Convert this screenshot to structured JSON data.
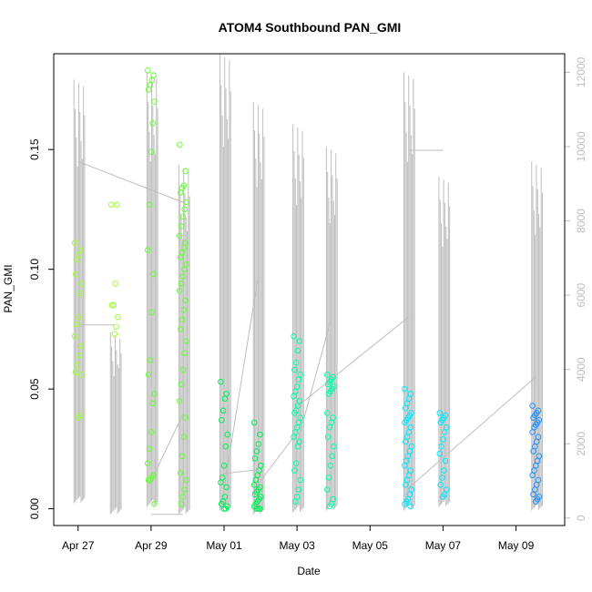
{
  "chart_data": {
    "type": "scatter",
    "title": "ATOM4 Southbound PAN_GMI",
    "xlabel": "Date",
    "ylabel": "PAN_GMI",
    "x_range": [
      "2016-04-26T08:00",
      "2016-05-10T08:00"
    ],
    "ylim": [
      -0.007,
      0.19
    ],
    "y2lim": [
      -200,
      12500
    ],
    "x_ticks": [
      {
        "date": "2016-04-27",
        "label": "Apr 27"
      },
      {
        "date": "2016-04-29",
        "label": "Apr 29"
      },
      {
        "date": "2016-05-01",
        "label": "May 01"
      },
      {
        "date": "2016-05-03",
        "label": "May 03"
      },
      {
        "date": "2016-05-05",
        "label": "May 05"
      },
      {
        "date": "2016-05-07",
        "label": "May 07"
      },
      {
        "date": "2016-05-09",
        "label": "May 09"
      }
    ],
    "y_ticks": [
      {
        "value": 0.0,
        "label": "0.00"
      },
      {
        "value": 0.05,
        "label": "0.05"
      },
      {
        "value": 0.1,
        "label": "0.10"
      },
      {
        "value": 0.15,
        "label": "0.15"
      }
    ],
    "y2_ticks": [
      {
        "value": 0,
        "label": "0"
      },
      {
        "value": 2000,
        "label": "2000"
      },
      {
        "value": 4000,
        "label": "4000"
      },
      {
        "value": 6000,
        "label": "6000"
      },
      {
        "value": 8000,
        "label": "8000"
      },
      {
        "value": 10000,
        "label": "10000"
      },
      {
        "value": 12000,
        "label": "12000"
      }
    ],
    "colors": {
      "altitude_line": "#bdbdbd",
      "point_palette": [
        "#9dff33",
        "#33ff33",
        "#00ff66",
        "#00ffcc",
        "#00e6ff",
        "#1e90ff"
      ]
    },
    "series": [
      {
        "type": "points",
        "color": "#9dff33",
        "points": [
          {
            "x": "2016-04-27T00:00",
            "y": [
              0.111,
              0.108,
              0.106,
              0.104,
              0.098,
              0.094,
              0.09,
              0.08,
              0.077,
              0.072,
              0.068,
              0.064,
              0.06,
              0.057,
              0.056,
              0.039,
              0.038
            ]
          },
          {
            "x": "2016-04-28T00:00",
            "y": [
              0.127,
              0.127,
              0.094,
              0.085,
              0.085,
              0.08,
              0.076,
              0.073
            ]
          }
        ]
      },
      {
        "type": "points",
        "color": "#66ff33",
        "points": [
          {
            "x": "2016-04-29T00:00",
            "y": [
              0.183,
              0.181,
              0.179,
              0.177,
              0.175,
              0.17,
              0.161,
              0.149,
              0.127,
              0.108,
              0.098,
              0.082,
              0.062,
              0.056,
              0.048,
              0.044,
              0.032,
              0.025,
              0.019,
              0.014,
              0.013,
              0.012,
              0.012,
              0.002
            ]
          },
          {
            "x": "2016-04-29T21:00",
            "y": [
              0.152,
              0.141,
              0.135,
              0.134,
              0.132,
              0.128,
              0.125,
              0.122,
              0.118,
              0.114,
              0.111,
              0.109,
              0.107,
              0.105,
              0.102,
              0.1,
              0.097,
              0.094,
              0.091,
              0.087,
              0.083,
              0.079,
              0.075,
              0.07,
              0.065,
              0.058,
              0.052,
              0.045,
              0.038,
              0.03,
              0.022,
              0.015,
              0.012,
              0.008,
              0.005,
              0.002
            ]
          }
        ]
      },
      {
        "type": "points",
        "color": "#00ee55",
        "points": [
          {
            "x": "2016-05-01T00:00",
            "y": [
              0.053,
              0.048,
              0.046,
              0.041,
              0.037,
              0.031,
              0.026,
              0.018,
              0.013,
              0.011,
              0.009,
              0.005,
              0.003,
              0.002,
              0.001,
              0.0,
              0.0
            ]
          },
          {
            "x": "2016-05-01T22:00",
            "y": [
              0.036,
              0.031,
              0.027,
              0.024,
              0.021,
              0.018,
              0.016,
              0.014,
              0.012,
              0.01,
              0.009,
              0.008,
              0.007,
              0.006,
              0.005,
              0.004,
              0.003,
              0.002,
              0.001,
              0.0,
              0.0,
              0.0
            ]
          }
        ]
      },
      {
        "type": "points",
        "color": "#00ffaa",
        "points": [
          {
            "x": "2016-05-03T00:00",
            "y": [
              0.072,
              0.07,
              0.066,
              0.061,
              0.058,
              0.056,
              0.054,
              0.051,
              0.049,
              0.047,
              0.045,
              0.043,
              0.041,
              0.04,
              0.038,
              0.036,
              0.034,
              0.032,
              0.03,
              0.028,
              0.026,
              0.019,
              0.016,
              0.012,
              0.008,
              0.005,
              0.003
            ]
          },
          {
            "x": "2016-05-03T22:00",
            "y": [
              0.056,
              0.055,
              0.054,
              0.053,
              0.052,
              0.051,
              0.05,
              0.049,
              0.048,
              0.04,
              0.038,
              0.036,
              0.034,
              0.03,
              0.026,
              0.022,
              0.018,
              0.013,
              0.008,
              0.004,
              0.002,
              0.001
            ]
          }
        ]
      },
      {
        "type": "points",
        "color": "#00e8ff",
        "points": [
          {
            "x": "2016-05-06T01:00",
            "y": [
              0.05,
              0.048,
              0.046,
              0.044,
              0.042,
              0.04,
              0.039,
              0.038,
              0.037,
              0.036,
              0.034,
              0.032,
              0.03,
              0.028,
              0.026,
              0.024,
              0.022,
              0.02,
              0.018,
              0.016,
              0.014,
              0.012,
              0.01,
              0.008,
              0.006,
              0.004,
              0.003,
              0.002,
              0.001
            ]
          },
          {
            "x": "2016-05-07T00:00",
            "y": [
              0.04,
              0.039,
              0.038,
              0.037,
              0.036,
              0.034,
              0.032,
              0.029,
              0.026,
              0.023,
              0.02,
              0.016,
              0.013,
              0.01,
              0.008,
              0.006,
              0.005
            ]
          }
        ]
      },
      {
        "type": "points",
        "color": "#1e90ff",
        "points": [
          {
            "x": "2016-05-09T13:00",
            "y": [
              0.043,
              0.041,
              0.04,
              0.039,
              0.038,
              0.037,
              0.036,
              0.035,
              0.034,
              0.032,
              0.03,
              0.028,
              0.026,
              0.024,
              0.022,
              0.02,
              0.018,
              0.016,
              0.014,
              0.012,
              0.01,
              0.008,
              0.006,
              0.005,
              0.004,
              0.003
            ]
          }
        ]
      }
    ],
    "altitude_profiles": [
      {
        "x": "2016-04-27T00:00",
        "max": 11800,
        "min": 400
      },
      {
        "x": "2016-04-28T00:00",
        "max": 5000,
        "min": 100
      },
      {
        "x": "2016-04-29T00:00",
        "max": 12000,
        "min": 300
      },
      {
        "x": "2016-04-29T21:00",
        "max": 9500,
        "min": 100
      },
      {
        "x": "2016-05-01T00:00",
        "max": 12500,
        "min": 200
      },
      {
        "x": "2016-05-01T22:00",
        "max": 11200,
        "min": 100
      },
      {
        "x": "2016-05-03T00:00",
        "max": 10600,
        "min": 150
      },
      {
        "x": "2016-05-03T22:00",
        "max": 10000,
        "min": 200
      },
      {
        "x": "2016-05-06T01:00",
        "max": 12000,
        "min": 200
      },
      {
        "x": "2016-05-07T00:00",
        "max": 9200,
        "min": 300
      },
      {
        "x": "2016-05-09T13:00",
        "max": 9600,
        "min": 200
      }
    ],
    "altitude_transits": [
      {
        "x1": "2016-04-27T00:00",
        "y1": 9600,
        "x2": "2016-04-29T21:00",
        "y2": 8500
      },
      {
        "x1": "2016-04-27T00:00",
        "y1": 5200,
        "x2": "2016-04-28T00:00",
        "y2": 5200
      },
      {
        "x1": "2016-04-29T00:00",
        "y1": 100,
        "x2": "2016-04-29T21:00",
        "y2": 100
      },
      {
        "x1": "2016-04-29T00:00",
        "y1": 1000,
        "x2": "2016-04-29T21:00",
        "y2": 2800
      },
      {
        "x1": "2016-05-01T00:00",
        "y1": 1200,
        "x2": "2016-05-01T22:00",
        "y2": 1300
      },
      {
        "x1": "2016-05-01T00:00",
        "y1": 800,
        "x2": "2016-05-01T22:00",
        "y2": 6400
      },
      {
        "x1": "2016-05-01T22:00",
        "y1": 900,
        "x2": "2016-05-03T00:00",
        "y2": 2300
      },
      {
        "x1": "2016-05-03T00:00",
        "y1": 2000,
        "x2": "2016-05-03T22:00",
        "y2": 5300
      },
      {
        "x1": "2016-05-03T00:00",
        "y1": 3000,
        "x2": "2016-05-06T01:00",
        "y2": 5400
      },
      {
        "x1": "2016-05-06T01:00",
        "y1": 9900,
        "x2": "2016-05-07T00:00",
        "y2": 9900
      },
      {
        "x1": "2016-05-06T01:00",
        "y1": 800,
        "x2": "2016-05-09T13:00",
        "y2": 3800
      }
    ]
  }
}
